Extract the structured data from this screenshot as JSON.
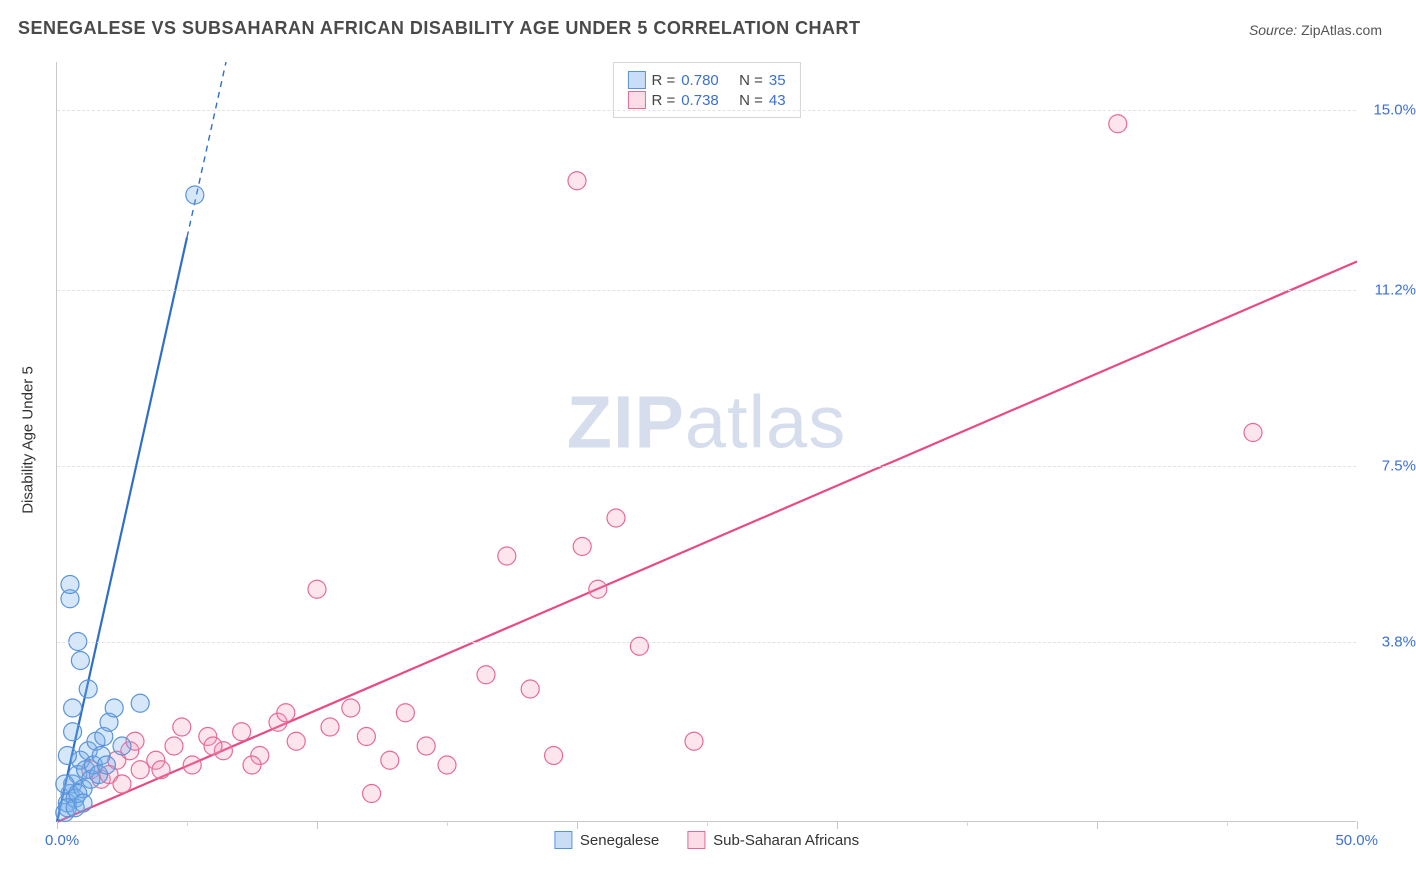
{
  "title": "SENEGALESE VS SUBSAHARAN AFRICAN DISABILITY AGE UNDER 5 CORRELATION CHART",
  "source_label": "Source:",
  "source_name": "ZipAtlas.com",
  "ylabel": "Disability Age Under 5",
  "watermark": {
    "part1": "ZIP",
    "part2": "atlas"
  },
  "chart": {
    "type": "scatter",
    "xlim": [
      0,
      50
    ],
    "ylim": [
      0,
      16
    ],
    "y_ticks": [
      {
        "value": 3.8,
        "label": "3.8%"
      },
      {
        "value": 7.5,
        "label": "7.5%"
      },
      {
        "value": 11.2,
        "label": "11.2%"
      },
      {
        "value": 15.0,
        "label": "15.0%"
      }
    ],
    "x_major_ticks": [
      0,
      10,
      20,
      30,
      40,
      50
    ],
    "x_minor_ticks": [
      5,
      15,
      25,
      35,
      45
    ],
    "x_labels": {
      "min": "0.0%",
      "max": "50.0%"
    },
    "background_color": "#ffffff",
    "grid_color": "#e2e2e2",
    "marker_radius": 9,
    "marker_stroke_width": 1.2,
    "line_width_solid": 2.2,
    "line_width_dashed": 1.4
  },
  "series": {
    "blue": {
      "label": "Senegalese",
      "R": "0.780",
      "N": "35",
      "fill": "rgba(120,175,235,0.30)",
      "stroke": "#5a94d8",
      "line_color": "#2f6fc9",
      "trend": {
        "x1": 0,
        "y1": 0,
        "x2": 6.5,
        "y2": 16,
        "solid_until_x": 5.0
      },
      "points": [
        [
          0.3,
          0.2
        ],
        [
          0.4,
          0.4
        ],
        [
          0.5,
          0.6
        ],
        [
          0.6,
          0.8
        ],
        [
          0.7,
          0.5
        ],
        [
          0.8,
          1.0
        ],
        [
          0.9,
          1.3
        ],
        [
          1.0,
          0.7
        ],
        [
          1.1,
          1.1
        ],
        [
          1.2,
          1.5
        ],
        [
          1.3,
          0.9
        ],
        [
          1.4,
          1.2
        ],
        [
          1.5,
          1.7
        ],
        [
          1.6,
          1.0
        ],
        [
          1.7,
          1.4
        ],
        [
          1.8,
          1.8
        ],
        [
          1.9,
          1.2
        ],
        [
          2.0,
          2.1
        ],
        [
          2.2,
          2.4
        ],
        [
          0.6,
          2.4
        ],
        [
          2.5,
          1.6
        ],
        [
          0.6,
          1.9
        ],
        [
          1.2,
          2.8
        ],
        [
          0.5,
          4.7
        ],
        [
          0.5,
          5.0
        ],
        [
          0.8,
          3.8
        ],
        [
          0.9,
          3.4
        ],
        [
          3.2,
          2.5
        ],
        [
          0.4,
          0.3
        ],
        [
          0.3,
          0.8
        ],
        [
          0.4,
          1.4
        ],
        [
          0.7,
          0.3
        ],
        [
          0.8,
          0.6
        ],
        [
          5.3,
          13.2
        ],
        [
          1.0,
          0.4
        ]
      ]
    },
    "pink": {
      "label": "Sub-Saharan Africans",
      "R": "0.738",
      "N": "43",
      "fill": "rgba(245,150,185,0.25)",
      "stroke": "#e66a99",
      "line_color": "#e84a85",
      "trend": {
        "x1": 0,
        "y1": 0,
        "x2": 50,
        "y2": 11.8,
        "solid_until_x": 50
      },
      "points": [
        [
          1.3,
          1.1
        ],
        [
          1.7,
          0.9
        ],
        [
          2.3,
          1.3
        ],
        [
          2.8,
          1.5
        ],
        [
          3.2,
          1.1
        ],
        [
          3.8,
          1.3
        ],
        [
          4.5,
          1.6
        ],
        [
          5.2,
          1.2
        ],
        [
          5.8,
          1.8
        ],
        [
          6.4,
          1.5
        ],
        [
          7.1,
          1.9
        ],
        [
          7.8,
          1.4
        ],
        [
          8.5,
          2.1
        ],
        [
          9.2,
          1.7
        ],
        [
          10.0,
          4.9
        ],
        [
          10.5,
          2.0
        ],
        [
          11.3,
          2.4
        ],
        [
          12.1,
          0.6
        ],
        [
          12.8,
          1.3
        ],
        [
          13.4,
          2.3
        ],
        [
          14.2,
          1.6
        ],
        [
          15.0,
          1.2
        ],
        [
          16.5,
          3.1
        ],
        [
          17.3,
          5.6
        ],
        [
          18.2,
          2.8
        ],
        [
          19.1,
          1.4
        ],
        [
          20.2,
          5.8
        ],
        [
          20.0,
          13.5
        ],
        [
          24.5,
          1.7
        ],
        [
          22.4,
          3.7
        ],
        [
          46.0,
          8.2
        ],
        [
          40.8,
          14.7
        ],
        [
          2.0,
          1.0
        ],
        [
          2.5,
          0.8
        ],
        [
          3.0,
          1.7
        ],
        [
          4.0,
          1.1
        ],
        [
          4.8,
          2.0
        ],
        [
          6.0,
          1.6
        ],
        [
          7.5,
          1.2
        ],
        [
          8.8,
          2.3
        ],
        [
          11.9,
          1.8
        ],
        [
          21.5,
          6.4
        ],
        [
          20.8,
          4.9
        ]
      ]
    }
  },
  "stat_legend": {
    "R_prefix": "R =",
    "N_prefix": "N ="
  }
}
